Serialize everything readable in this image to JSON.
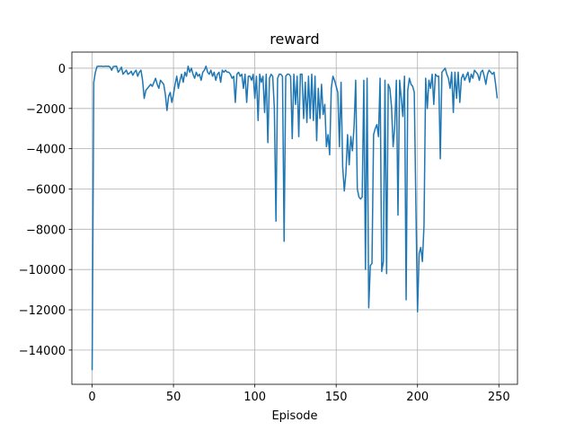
{
  "chart_data": {
    "type": "line",
    "title": "reward",
    "xlabel": "Episode",
    "x": [
      0,
      1,
      2,
      3,
      4,
      5,
      6,
      7,
      8,
      9,
      10,
      11,
      12,
      13,
      14,
      15,
      16,
      17,
      18,
      19,
      20,
      21,
      22,
      23,
      24,
      25,
      26,
      27,
      28,
      29,
      30,
      31,
      32,
      33,
      34,
      35,
      36,
      37,
      38,
      39,
      40,
      41,
      42,
      43,
      44,
      45,
      46,
      47,
      48,
      49,
      50,
      51,
      52,
      53,
      54,
      55,
      56,
      57,
      58,
      59,
      60,
      61,
      62,
      63,
      64,
      65,
      66,
      67,
      68,
      69,
      70,
      71,
      72,
      73,
      74,
      75,
      76,
      77,
      78,
      79,
      80,
      81,
      82,
      83,
      84,
      85,
      86,
      87,
      88,
      89,
      90,
      91,
      92,
      93,
      94,
      95,
      96,
      97,
      98,
      99,
      100,
      101,
      102,
      103,
      104,
      105,
      106,
      107,
      108,
      109,
      110,
      111,
      112,
      113,
      114,
      115,
      116,
      117,
      118,
      119,
      120,
      121,
      122,
      123,
      124,
      125,
      126,
      127,
      128,
      129,
      130,
      131,
      132,
      133,
      134,
      135,
      136,
      137,
      138,
      139,
      140,
      141,
      142,
      143,
      144,
      145,
      146,
      147,
      148,
      149,
      150,
      151,
      152,
      153,
      154,
      155,
      156,
      157,
      158,
      159,
      160,
      161,
      162,
      163,
      164,
      165,
      166,
      167,
      168,
      169,
      170,
      171,
      172,
      173,
      174,
      175,
      176,
      177,
      178,
      179,
      180,
      181,
      182,
      183,
      184,
      185,
      186,
      187,
      188,
      189,
      190,
      191,
      192,
      193,
      194,
      195,
      196,
      197,
      198,
      199,
      200,
      201,
      202,
      203,
      204,
      205,
      206,
      207,
      208,
      209,
      210,
      211,
      212,
      213,
      214,
      215,
      216,
      217,
      218,
      219,
      220,
      221,
      222,
      223,
      224,
      225,
      226,
      227,
      228,
      229,
      230,
      231,
      232,
      233,
      234,
      235,
      236,
      237,
      238,
      239,
      240,
      241,
      242,
      243,
      244,
      245,
      246,
      247,
      248,
      249
    ],
    "series": [
      {
        "color": "#1f77b4",
        "values": [
          -15000,
          -700,
          -200,
          80,
          100,
          90,
          100,
          80,
          100,
          90,
          100,
          60,
          -100,
          80,
          90,
          100,
          -200,
          -100,
          50,
          -300,
          -200,
          -100,
          -300,
          -250,
          -150,
          -350,
          -200,
          -100,
          -400,
          -200,
          -100,
          -600,
          -1500,
          -1100,
          -1000,
          -900,
          -800,
          -900,
          -700,
          -500,
          -800,
          -1000,
          -600,
          -700,
          -800,
          -1300,
          -2100,
          -1400,
          -1200,
          -1700,
          -1300,
          -800,
          -400,
          -1000,
          -600,
          -300,
          -700,
          -200,
          -400,
          100,
          -200,
          0,
          -300,
          -500,
          -200,
          -400,
          -300,
          -600,
          -200,
          -100,
          100,
          -200,
          -300,
          -100,
          -400,
          -200,
          -600,
          -300,
          -200,
          -700,
          -100,
          -200,
          -100,
          -200,
          -200,
          -300,
          -500,
          -400,
          -1700,
          -300,
          -200,
          -400,
          -300,
          -1000,
          -300,
          -1700,
          -400,
          -400,
          -600,
          -300,
          -1500,
          -400,
          -2600,
          -300,
          -700,
          -400,
          -2200,
          -300,
          -3700,
          -500,
          -300,
          -400,
          -2000,
          -7600,
          -500,
          -300,
          -300,
          -400,
          -8600,
          -400,
          -300,
          -300,
          -400,
          -3500,
          -300,
          -1800,
          -400,
          -3400,
          -300,
          -300,
          -2500,
          -700,
          -2700,
          -400,
          -2500,
          -300,
          -2600,
          -400,
          -3600,
          -1000,
          -2500,
          -800,
          -2300,
          -1800,
          -3900,
          -3300,
          -4300,
          -1000,
          -400,
          -600,
          -900,
          -1200,
          -3900,
          -700,
          -4900,
          -6100,
          -5200,
          -3300,
          -4800,
          -3400,
          -4100,
          -2900,
          -600,
          -6000,
          -6400,
          -6500,
          -6400,
          -600,
          -10000,
          -500,
          -11900,
          -9800,
          -9700,
          -3300,
          -3000,
          -2800,
          -3400,
          -500,
          -10100,
          -9600,
          -600,
          -10200,
          -800,
          -1000,
          -1900,
          -3900,
          -2900,
          -600,
          -7300,
          -600,
          -1500,
          -2400,
          -400,
          -11500,
          -1100,
          -500,
          -800,
          -900,
          -1200,
          -6800,
          -12100,
          -9200,
          -8900,
          -9600,
          -7800,
          -500,
          -2000,
          -600,
          -1000,
          -300,
          -1800,
          -300,
          -400,
          -400,
          -4500,
          -200,
          -100,
          0,
          -300,
          -500,
          -1000,
          -200,
          -2200,
          -200,
          -1500,
          -200,
          -1700,
          -500,
          -300,
          -600,
          -400,
          -200,
          -700,
          -300,
          -500,
          -100,
          -200,
          -300,
          -600,
          -200,
          -100,
          -400,
          -800,
          -300,
          -100,
          -200,
          -300,
          -200,
          -800,
          -1500
        ]
      }
    ],
    "xlim": [
      -12.45,
      261.45
    ],
    "xticks": [
      0,
      50,
      100,
      150,
      200,
      250
    ],
    "ylim": [
      -15700,
      800
    ],
    "yticks": [
      {
        "value": -14000,
        "label": "−14000"
      },
      {
        "value": -12000,
        "label": "−12000"
      },
      {
        "value": -10000,
        "label": "−10000"
      },
      {
        "value": -8000,
        "label": "−8000"
      },
      {
        "value": -6000,
        "label": "−6000"
      },
      {
        "value": -4000,
        "label": "−4000"
      },
      {
        "value": -2000,
        "label": "−2000"
      },
      0
    ],
    "grid": true
  }
}
